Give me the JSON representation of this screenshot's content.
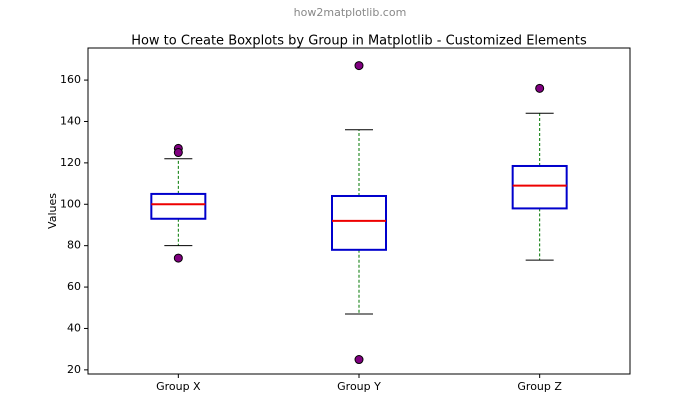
{
  "chart_data": {
    "type": "box",
    "watermark": "how2matplotlib.com",
    "title": "How to Create Boxplots by Group in Matplotlib - Customized Elements",
    "ylabel": "Values",
    "categories": [
      "Group X",
      "Group Y",
      "Group Z"
    ],
    "boxes": [
      {
        "whislo": 80,
        "q1": 93,
        "med": 100,
        "q3": 105,
        "whishi": 122,
        "fliers": [
          127,
          125,
          74
        ]
      },
      {
        "whislo": 47,
        "q1": 78,
        "med": 92,
        "q3": 104,
        "whishi": 136,
        "fliers": [
          167,
          25
        ]
      },
      {
        "whislo": 73,
        "q1": 98,
        "med": 109,
        "q3": 118.5,
        "whishi": 144,
        "fliers": [
          156
        ]
      }
    ],
    "box_color": "#0000cc",
    "median_color": "#ee0000",
    "whisker_color": "#007700",
    "cap_color": "#000000",
    "flier_color": "#800080",
    "ylim": [
      18,
      175.5
    ],
    "yticks": [
      20,
      40,
      60,
      80,
      100,
      120,
      140,
      160
    ]
  }
}
